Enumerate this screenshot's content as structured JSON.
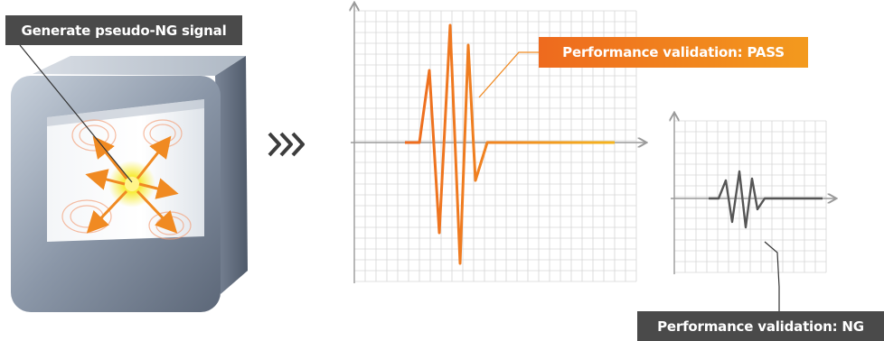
{
  "labels": {
    "generate": "Generate pseudo-NG signal",
    "pass": "Performance validation: PASS",
    "ng": "Performance validation: NG"
  },
  "icons": {
    "sequence_arrow": "triple-chevron-right-icon"
  },
  "colors": {
    "pass_gradient_start": "#ee6a1e",
    "pass_gradient_end": "#f39a1e",
    "ng_waveform": "#555555",
    "label_dark_bg": "#4a4a4a",
    "grid_line": "#d6d6d6",
    "axis": "#9a9a9a"
  }
}
